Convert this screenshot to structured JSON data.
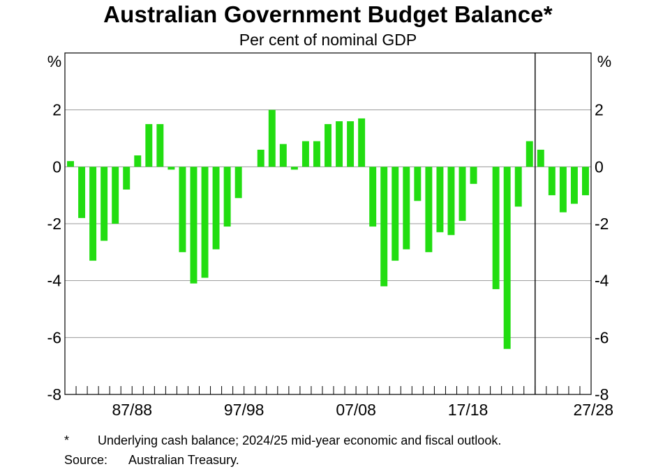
{
  "chart_data": {
    "type": "bar",
    "title": "Australian Government Budget Balance*",
    "subtitle": "Per cent of nominal GDP",
    "y_unit_left": "%",
    "y_unit_right": "%",
    "ylim": [
      -8,
      4
    ],
    "yticks": [
      "2",
      "0",
      "-2",
      "-4",
      "-6",
      "-8"
    ],
    "ytick_values": [
      2,
      0,
      -2,
      -4,
      -6,
      -8
    ],
    "x_tick_labels": [
      "87/88",
      "97/98",
      "07/08",
      "17/18",
      "27/28"
    ],
    "x_tick_label_indices": [
      6,
      16,
      26,
      36,
      46
    ],
    "forecast_divider_after_index": 41,
    "bar_color": "#22dd11",
    "grid": true,
    "values": [
      0.2,
      -1.8,
      -3.3,
      -2.6,
      -2.0,
      -0.8,
      0.4,
      1.5,
      1.5,
      -0.1,
      -3.0,
      -4.1,
      -3.9,
      -2.9,
      -2.1,
      -1.1,
      0.0,
      0.6,
      2.0,
      0.8,
      -0.1,
      0.9,
      0.9,
      1.5,
      1.6,
      1.6,
      1.7,
      -2.1,
      -4.2,
      -3.3,
      -2.9,
      -1.2,
      -3.0,
      -2.3,
      -2.4,
      -1.9,
      -0.6,
      0.0,
      -4.3,
      -6.4,
      -1.4,
      0.9,
      0.6,
      -1.0,
      -1.6,
      -1.3,
      -1.0
    ]
  },
  "footnotes": {
    "asterisk": "*",
    "note": "Underlying cash balance; 2024/25 mid-year economic and fiscal outlook.",
    "source_label": "Source:",
    "source_text": "Australian Treasury."
  }
}
